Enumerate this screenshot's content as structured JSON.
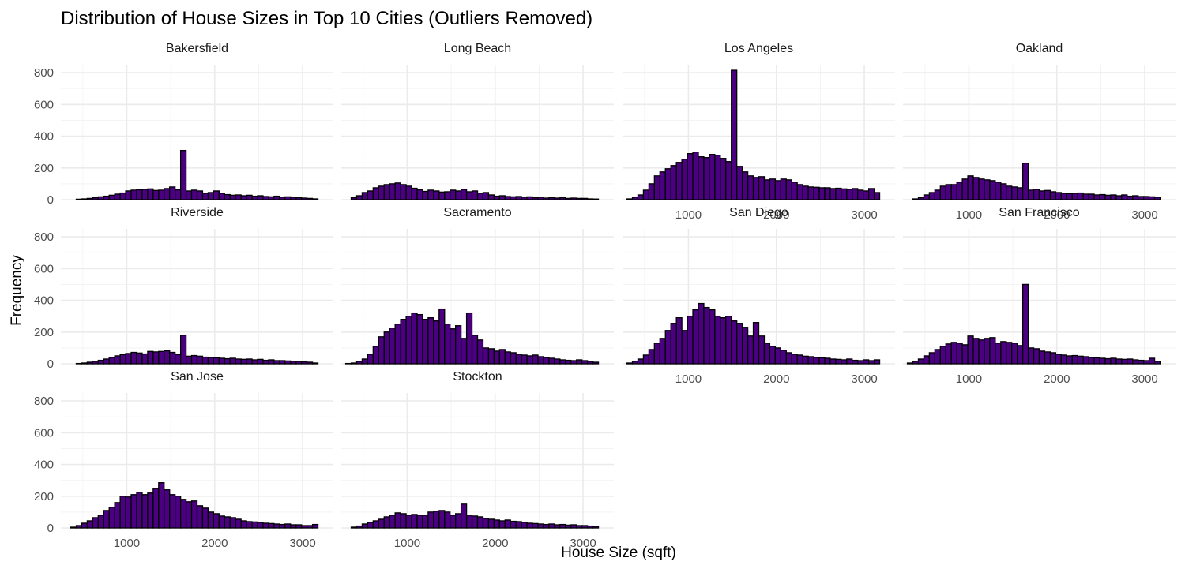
{
  "chart_data": {
    "type": "bar",
    "title": "Distribution of House Sizes in Top 10 Cities (Outliers Removed)",
    "xlabel": "House Size (sqft)",
    "ylabel": "Frequency",
    "xlim": [
      250,
      3350
    ],
    "ylim": [
      0,
      850
    ],
    "x_ticks": [
      1000,
      2000,
      3000
    ],
    "y_ticks": [
      0,
      200,
      400,
      600,
      800
    ],
    "bar_color": "#4b0082",
    "bar_outline": "#000000",
    "grid": true,
    "bin_start": 300,
    "bin_width": 62.5,
    "facets": [
      {
        "name": "Bakersfield",
        "values": [
          0,
          0,
          3,
          5,
          8,
          12,
          18,
          22,
          28,
          35,
          42,
          55,
          60,
          63,
          65,
          68,
          58,
          60,
          70,
          80,
          62,
          310,
          55,
          60,
          55,
          40,
          45,
          55,
          40,
          32,
          28,
          30,
          25,
          28,
          22,
          25,
          20,
          18,
          22,
          15,
          18,
          15,
          12,
          10,
          8,
          5
        ]
      },
      {
        "name": "Long Beach",
        "values": [
          0,
          12,
          25,
          45,
          55,
          75,
          85,
          95,
          100,
          105,
          95,
          85,
          72,
          62,
          52,
          60,
          55,
          48,
          50,
          60,
          55,
          65,
          50,
          55,
          40,
          45,
          30,
          22,
          25,
          20,
          18,
          20,
          15,
          18,
          12,
          15,
          10,
          12,
          10,
          12,
          8,
          10,
          8,
          8,
          5,
          4
        ]
      },
      {
        "name": "Los Angeles",
        "values": [
          5,
          15,
          30,
          60,
          100,
          150,
          175,
          195,
          215,
          235,
          255,
          290,
          300,
          270,
          265,
          285,
          280,
          260,
          240,
          815,
          210,
          175,
          150,
          140,
          145,
          125,
          130,
          120,
          130,
          125,
          110,
          95,
          85,
          80,
          78,
          75,
          75,
          70,
          72,
          68,
          65,
          70,
          60,
          55,
          70,
          45
        ]
      },
      {
        "name": "Oakland",
        "values": [
          0,
          5,
          12,
          30,
          45,
          60,
          85,
          95,
          95,
          110,
          130,
          150,
          140,
          130,
          125,
          120,
          110,
          100,
          85,
          80,
          75,
          230,
          60,
          65,
          55,
          58,
          50,
          45,
          40,
          38,
          40,
          42,
          35,
          35,
          30,
          32,
          28,
          30,
          25,
          30,
          22,
          25,
          20,
          20,
          18,
          15
        ]
      },
      {
        "name": "Riverside",
        "values": [
          0,
          0,
          2,
          5,
          10,
          15,
          22,
          30,
          40,
          50,
          58,
          65,
          72,
          68,
          62,
          78,
          75,
          78,
          82,
          72,
          58,
          180,
          48,
          52,
          48,
          42,
          40,
          38,
          35,
          32,
          35,
          30,
          28,
          30,
          25,
          28,
          22,
          25,
          20,
          20,
          18,
          16,
          15,
          12,
          10,
          5
        ]
      },
      {
        "name": "Sacramento",
        "values": [
          2,
          5,
          15,
          30,
          60,
          110,
          170,
          200,
          225,
          250,
          280,
          300,
          320,
          310,
          280,
          290,
          270,
          345,
          250,
          220,
          240,
          160,
          320,
          180,
          150,
          100,
          95,
          80,
          90,
          75,
          70,
          60,
          55,
          50,
          55,
          45,
          40,
          35,
          30,
          25,
          22,
          20,
          25,
          20,
          15,
          10
        ]
      },
      {
        "name": "San Diego",
        "values": [
          5,
          15,
          30,
          55,
          90,
          130,
          160,
          210,
          255,
          290,
          210,
          300,
          340,
          380,
          355,
          340,
          300,
          290,
          300,
          270,
          255,
          230,
          175,
          260,
          175,
          130,
          110,
          100,
          85,
          70,
          60,
          55,
          48,
          45,
          40,
          38,
          35,
          30,
          28,
          25,
          30,
          22,
          20,
          25,
          20,
          25
        ]
      },
      {
        "name": "San Francisco",
        "values": [
          5,
          15,
          30,
          50,
          70,
          90,
          110,
          125,
          135,
          130,
          120,
          175,
          160,
          150,
          160,
          165,
          130,
          140,
          135,
          130,
          115,
          500,
          100,
          95,
          80,
          75,
          70,
          60,
          55,
          50,
          52,
          48,
          45,
          40,
          38,
          35,
          32,
          35,
          30,
          28,
          30,
          25,
          22,
          20,
          35,
          15
        ]
      },
      {
        "name": "San Jose",
        "values": [
          0,
          5,
          15,
          30,
          45,
          65,
          80,
          110,
          130,
          160,
          200,
          195,
          210,
          225,
          210,
          220,
          250,
          285,
          240,
          210,
          200,
          180,
          165,
          170,
          140,
          125,
          100,
          90,
          75,
          70,
          65,
          55,
          45,
          40,
          38,
          35,
          30,
          28,
          25,
          22,
          25,
          20,
          20,
          15,
          15,
          22
        ]
      },
      {
        "name": "Stockton",
        "values": [
          0,
          5,
          12,
          25,
          35,
          45,
          55,
          70,
          80,
          95,
          90,
          80,
          85,
          80,
          80,
          100,
          105,
          110,
          100,
          80,
          90,
          150,
          80,
          75,
          70,
          60,
          55,
          50,
          45,
          50,
          42,
          40,
          35,
          30,
          28,
          25,
          22,
          25,
          20,
          22,
          18,
          20,
          15,
          15,
          12,
          10
        ]
      }
    ]
  }
}
